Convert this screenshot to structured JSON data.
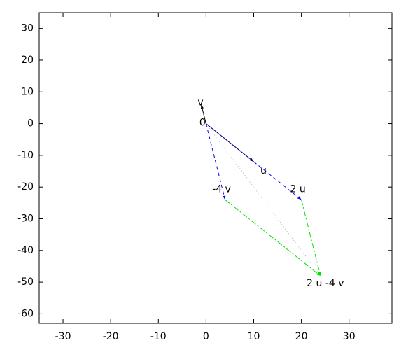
{
  "chart_data": {
    "type": "vector",
    "xlim": [
      -35,
      39
    ],
    "ylim": [
      -63,
      35
    ],
    "xticks": [
      -30,
      -20,
      -10,
      0,
      10,
      20,
      30
    ],
    "yticks": [
      -60,
      -50,
      -40,
      -30,
      -20,
      -10,
      0,
      10,
      20,
      30
    ],
    "segments": [
      {
        "x": [
          0,
          -1
        ],
        "y": [
          0,
          6
        ],
        "color": "#000000",
        "style": "solid",
        "head": true
      },
      {
        "x": [
          0,
          10
        ],
        "y": [
          0,
          -12
        ],
        "color": "#000080",
        "style": "solid",
        "head": true
      },
      {
        "x": [
          0,
          4
        ],
        "y": [
          0,
          -24
        ],
        "color": "#0000ff",
        "style": "dashed",
        "head": true
      },
      {
        "x": [
          10,
          20
        ],
        "y": [
          -12,
          -24
        ],
        "color": "#0000ff",
        "style": "dashed",
        "head": true
      },
      {
        "x": [
          4,
          24
        ],
        "y": [
          -24,
          -48
        ],
        "color": "#00e000",
        "style": "dashdot",
        "head": true
      },
      {
        "x": [
          20,
          24
        ],
        "y": [
          -24,
          -48
        ],
        "color": "#00e000",
        "style": "dashdot",
        "head": true
      },
      {
        "x": [
          0,
          24
        ],
        "y": [
          0,
          -48
        ],
        "color": "#b0b0b0",
        "style": "dotted",
        "head": false
      }
    ],
    "points": [
      {
        "label": "0",
        "x": 0,
        "y": 0
      },
      {
        "label": "v",
        "x": -1,
        "y": 6
      },
      {
        "label": "u",
        "x": 10,
        "y": -12
      },
      {
        "label": "2 u",
        "x": 20,
        "y": -24
      },
      {
        "label": "-4 v",
        "x": 4,
        "y": -24
      },
      {
        "label": "2 u -4 v",
        "x": 24,
        "y": -48
      }
    ]
  }
}
